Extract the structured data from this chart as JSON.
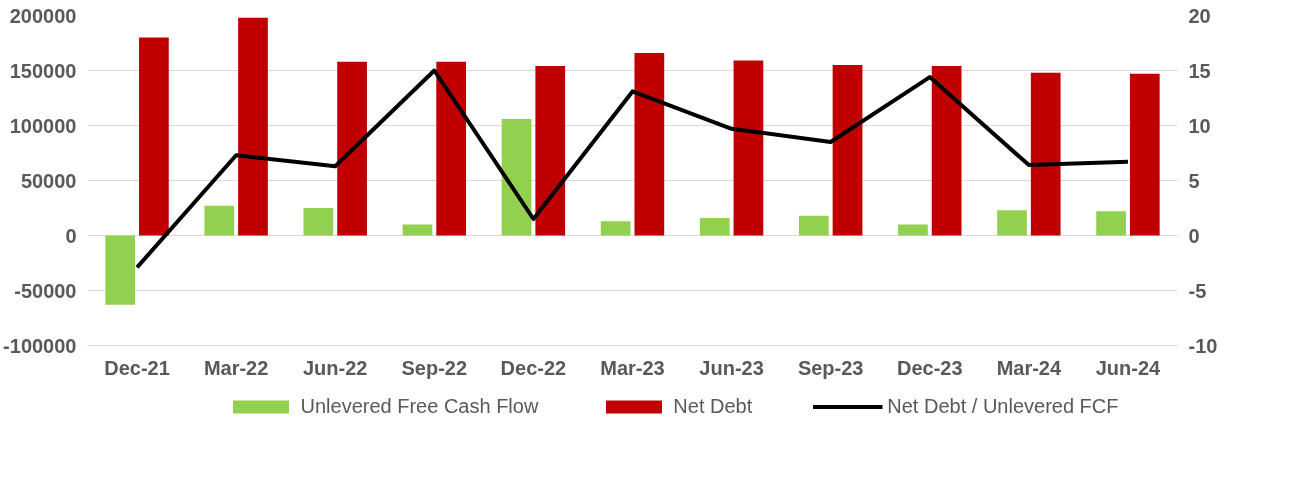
{
  "chart_data": {
    "type": "bar",
    "categories": [
      "Dec-21",
      "Mar-22",
      "Jun-22",
      "Sep-22",
      "Dec-22",
      "Mar-23",
      "Jun-23",
      "Sep-23",
      "Dec-23",
      "Mar-24",
      "Jun-24"
    ],
    "series": [
      {
        "name": "Unlevered Free Cash Flow",
        "color": "#92d050",
        "values": [
          -63000,
          27000,
          25000,
          10000,
          106000,
          13000,
          16000,
          18000,
          10000,
          23000,
          22000
        ]
      },
      {
        "name": "Net Debt",
        "color": "#c00000",
        "values": [
          180000,
          198000,
          158000,
          158000,
          154000,
          166000,
          159000,
          155000,
          154000,
          148000,
          147000
        ]
      },
      {
        "name": "Net Debt / Unlevered FCF",
        "type": "line",
        "axis": "y2",
        "color": "#000000",
        "values": [
          -2.9,
          7.3,
          6.3,
          15,
          1.5,
          13.1,
          9.7,
          8.5,
          14.4,
          6.4,
          6.7
        ]
      }
    ],
    "ylim": [
      -100000,
      200000
    ],
    "yticks": [
      -100000,
      -50000,
      0,
      50000,
      100000,
      150000,
      200000
    ],
    "y2lim": [
      -10,
      20
    ],
    "y2ticks": [
      -10,
      -5,
      0,
      5,
      10,
      15,
      20
    ],
    "grid": "y",
    "legend": "bottom",
    "marker": "none",
    "line_style": "solid"
  }
}
